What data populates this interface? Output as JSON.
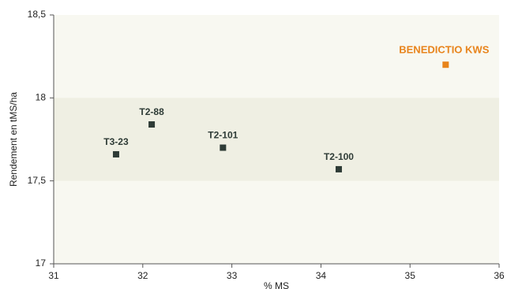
{
  "chart_data": {
    "type": "scatter",
    "x_label": "% MS",
    "y_label": "Rendement en tMS/ha",
    "xlim": [
      31,
      36
    ],
    "xticks": [
      31,
      32,
      33,
      34,
      35,
      36
    ],
    "ylim": [
      17,
      18.5
    ],
    "yticks": [
      17,
      {
        "value": 17.5,
        "label": "17,5"
      },
      18,
      {
        "value": 18.5,
        "label": "18,5"
      }
    ],
    "band": [
      17.5,
      18
    ],
    "points": [
      {
        "label": "T3-23",
        "x": 31.7,
        "y": 17.66,
        "color": "#2e3b36"
      },
      {
        "label": "T2-88",
        "x": 32.1,
        "y": 17.84,
        "color": "#2e3b36"
      },
      {
        "label": "T2-101",
        "x": 32.9,
        "y": 17.7,
        "color": "#2e3b36"
      },
      {
        "label": "T2-100",
        "x": 34.2,
        "y": 17.57,
        "color": "#2e3b36"
      },
      {
        "label": "BENEDICTIO KWS",
        "x": 35.4,
        "y": 18.2,
        "color": "#e8841c"
      }
    ]
  }
}
